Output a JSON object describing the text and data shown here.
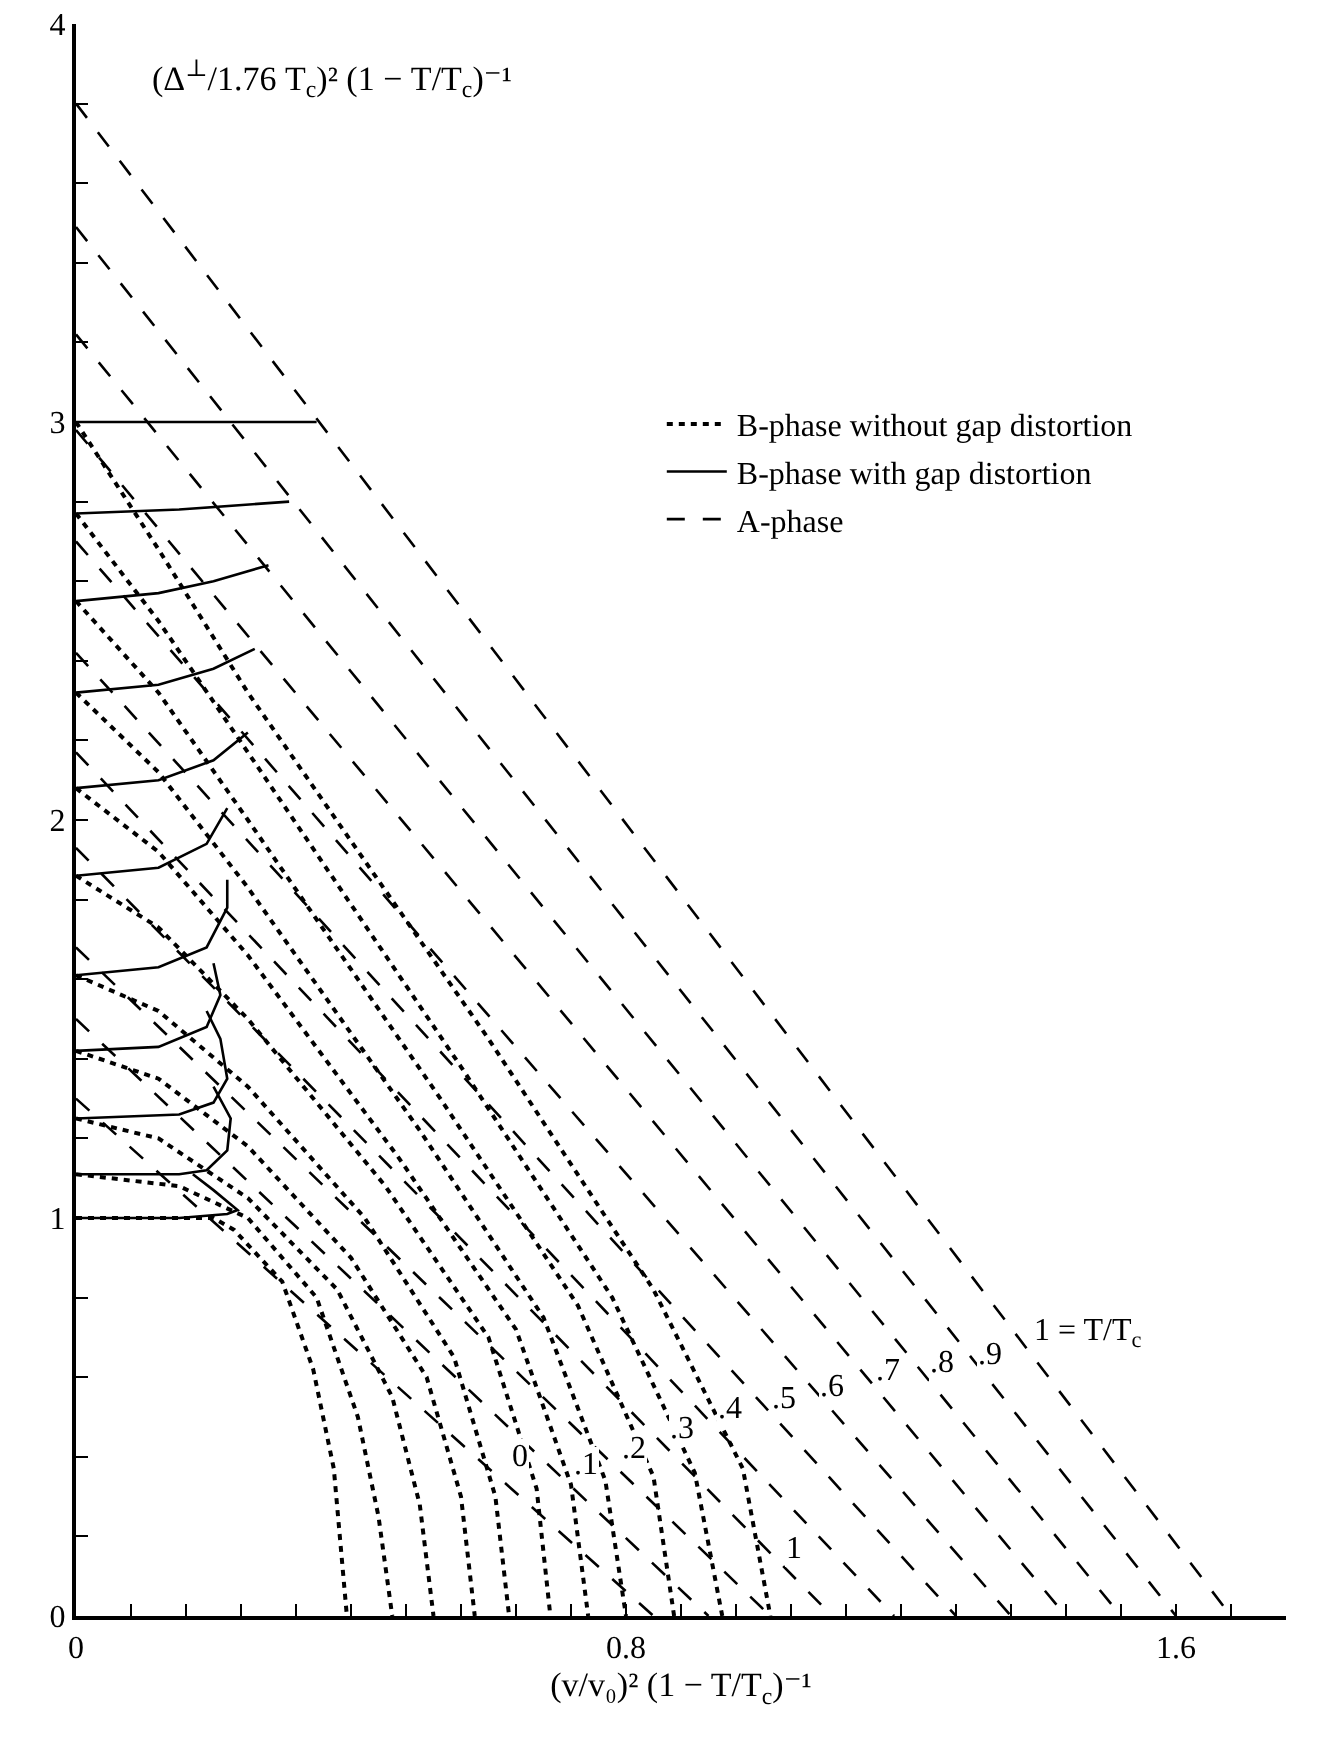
{
  "chart_data": {
    "type": "line",
    "xlabel": "(v/v₀)² (1 − T/T$_{c}$)⁻¹",
    "ylabel": "(Δ$^{⊥}$/1.76 T$_{c}$)² (1 − T/T$_{c}$)⁻¹",
    "xlim": [
      0,
      1.76
    ],
    "ylim": [
      0,
      4
    ],
    "xticks": [
      0,
      {
        "value": 0.08,
        "label": null
      },
      {
        "value": 0.16,
        "label": null
      },
      {
        "value": 0.24,
        "label": null
      },
      {
        "value": 0.32,
        "label": null
      },
      {
        "value": 0.4,
        "label": null
      },
      {
        "value": 0.48,
        "label": null
      },
      {
        "value": 0.56,
        "label": null
      },
      {
        "value": 0.64,
        "label": null
      },
      {
        "value": 0.72,
        "label": null
      },
      0.8,
      {
        "value": 0.88,
        "label": null
      },
      {
        "value": 0.96,
        "label": null
      },
      {
        "value": 1.04,
        "label": null
      },
      {
        "value": 1.12,
        "label": null
      },
      {
        "value": 1.2,
        "label": null
      },
      {
        "value": 1.28,
        "label": null
      },
      {
        "value": 1.36,
        "label": null
      },
      {
        "value": 1.44,
        "label": null
      },
      {
        "value": 1.52,
        "label": null
      },
      1.6,
      {
        "value": 1.68,
        "label": null
      }
    ],
    "yticks": [
      0,
      {
        "value": 0.2,
        "label": null
      },
      {
        "value": 0.4,
        "label": null
      },
      {
        "value": 0.6,
        "label": null
      },
      {
        "value": 0.8,
        "label": null
      },
      1,
      {
        "value": 1.2,
        "label": null
      },
      {
        "value": 1.4,
        "label": null
      },
      {
        "value": 1.6,
        "label": null
      },
      {
        "value": 1.8,
        "label": null
      },
      2,
      {
        "value": 2.2,
        "label": null
      },
      {
        "value": 2.4,
        "label": null
      },
      {
        "value": 2.6,
        "label": null
      },
      {
        "value": 2.8,
        "label": null
      },
      3,
      {
        "value": 3.2,
        "label": null
      },
      {
        "value": 3.4,
        "label": null
      },
      {
        "value": 3.6,
        "label": null
      },
      {
        "value": 3.8,
        "label": null
      },
      4
    ],
    "grid": false,
    "legend": "top right",
    "marker": "none",
    "series": [
      {
        "name": "B-phase without gap distortion",
        "color": "#000000",
        "line_style": "dotted",
        "x": [
          0,
          0.2,
          0.23,
          0.3,
          0.345,
          0.375,
          0.394
        ],
        "values": [
          1,
          1,
          0.97,
          0.84,
          0.62,
          0.37,
          0
        ]
      },
      {
        "color": "#000000",
        "line_style": "dotted",
        "x": [
          0,
          0.15,
          0.25,
          0.35,
          0.41,
          0.44,
          0.46
        ],
        "values": [
          1.11,
          1.08,
          1,
          0.8,
          0.5,
          0.25,
          0
        ]
      },
      {
        "color": "#000000",
        "line_style": "dotted",
        "x": [
          0,
          0.12,
          0.25,
          0.38,
          0.46,
          0.5,
          0.52
        ],
        "values": [
          1.25,
          1.2,
          1.05,
          0.82,
          0.55,
          0.28,
          0
        ]
      },
      {
        "color": "#000000",
        "line_style": "dotted",
        "x": [
          0,
          0.12,
          0.25,
          0.4,
          0.51,
          0.56,
          0.58
        ],
        "values": [
          1.42,
          1.35,
          1.18,
          0.9,
          0.6,
          0.3,
          0
        ]
      },
      {
        "color": "#000000",
        "line_style": "dotted",
        "x": [
          0,
          0.12,
          0.25,
          0.42,
          0.55,
          0.61,
          0.63
        ],
        "values": [
          1.61,
          1.52,
          1.33,
          1,
          0.65,
          0.3,
          0
        ]
      },
      {
        "color": "#000000",
        "line_style": "dotted",
        "x": [
          0,
          0.12,
          0.25,
          0.45,
          0.6,
          0.67,
          0.69
        ],
        "values": [
          1.86,
          1.73,
          1.5,
          1.08,
          0.7,
          0.32,
          0
        ]
      },
      {
        "color": "#000000",
        "line_style": "dotted",
        "x": [
          0,
          0.12,
          0.25,
          0.47,
          0.64,
          0.72,
          0.745
        ],
        "values": [
          2.08,
          1.92,
          1.66,
          1.15,
          0.72,
          0.33,
          0
        ]
      },
      {
        "color": "#000000",
        "line_style": "dotted",
        "x": [
          0,
          0.12,
          0.25,
          0.5,
          0.68,
          0.77,
          0.8
        ],
        "values": [
          2.32,
          2.12,
          1.83,
          1.22,
          0.75,
          0.34,
          0
        ]
      },
      {
        "color": "#000000",
        "line_style": "dotted",
        "x": [
          0,
          0.12,
          0.25,
          0.53,
          0.73,
          0.84,
          0.87
        ],
        "values": [
          2.55,
          2.32,
          2,
          1.3,
          0.78,
          0.35,
          0
        ]
      },
      {
        "color": "#000000",
        "line_style": "dotted",
        "x": [
          0,
          0.12,
          0.25,
          0.56,
          0.78,
          0.9,
          0.94
        ],
        "values": [
          2.77,
          2.5,
          2.17,
          1.38,
          0.8,
          0.36,
          0
        ]
      },
      {
        "color": "#000000",
        "line_style": "dotted",
        "x": [
          0,
          0.12,
          0.25,
          0.6,
          0.84,
          0.97,
          1.01
        ],
        "values": [
          3,
          2.68,
          2.32,
          1.45,
          0.82,
          0.37,
          0
        ]
      },
      {
        "name": "B-phase with gap distortion",
        "color": "#000000",
        "line_style": "solid",
        "x": [
          0,
          0.15,
          0.22,
          0.235,
          0.2,
          0.17
        ],
        "values": [
          1,
          1,
          1.01,
          1.02,
          1.07,
          1.11
        ]
      },
      {
        "color": "#000000",
        "line_style": "solid",
        "x": [
          0,
          0.15,
          0.19,
          0.22,
          0.225,
          0.2
        ],
        "values": [
          1.11,
          1.11,
          1.12,
          1.17,
          1.25,
          1.33
        ]
      },
      {
        "color": "#000000",
        "line_style": "solid",
        "x": [
          0,
          0.15,
          0.2,
          0.22,
          0.21,
          0.19
        ],
        "values": [
          1.25,
          1.26,
          1.29,
          1.35,
          1.45,
          1.52
        ]
      },
      {
        "color": "#000000",
        "line_style": "solid",
        "x": [
          0,
          0.12,
          0.19,
          0.21,
          0.2
        ],
        "values": [
          1.42,
          1.43,
          1.48,
          1.56,
          1.64
        ]
      },
      {
        "color": "#000000",
        "line_style": "solid",
        "x": [
          0,
          0.12,
          0.19,
          0.22,
          0.22
        ],
        "values": [
          1.61,
          1.63,
          1.68,
          1.78,
          1.85
        ]
      },
      {
        "color": "#000000",
        "line_style": "solid",
        "x": [
          0,
          0.12,
          0.19,
          0.22
        ],
        "values": [
          1.86,
          1.88,
          1.94,
          2.03
        ]
      },
      {
        "color": "#000000",
        "line_style": "solid",
        "x": [
          0,
          0.12,
          0.2,
          0.25
        ],
        "values": [
          2.08,
          2.1,
          2.15,
          2.22
        ]
      },
      {
        "color": "#000000",
        "line_style": "solid",
        "x": [
          0,
          0.12,
          0.2,
          0.26
        ],
        "values": [
          2.32,
          2.34,
          2.38,
          2.43
        ]
      },
      {
        "color": "#000000",
        "line_style": "solid",
        "x": [
          0,
          0.12,
          0.2,
          0.28
        ],
        "values": [
          2.55,
          2.57,
          2.6,
          2.64
        ]
      },
      {
        "color": "#000000",
        "line_style": "solid",
        "x": [
          0,
          0.15,
          0.31
        ],
        "values": [
          2.77,
          2.78,
          2.8
        ]
      },
      {
        "color": "#000000",
        "line_style": "solid",
        "x": [
          0,
          0.2,
          0.35
        ],
        "values": [
          3,
          3,
          3
        ]
      },
      {
        "name": "A-phase",
        "color": "#000000",
        "line_style": "dashed",
        "x": [
          0,
          0.84
        ],
        "values": [
          1.3,
          0
        ]
      },
      {
        "color": "#000000",
        "line_style": "dashed",
        "x": [
          0,
          0.92
        ],
        "values": [
          1.5,
          0
        ]
      },
      {
        "color": "#000000",
        "line_style": "dashed",
        "x": [
          0,
          1.01
        ],
        "values": [
          1.68,
          0
        ]
      },
      {
        "color": "#000000",
        "line_style": "dashed",
        "x": [
          0,
          1.1
        ],
        "values": [
          1.93,
          0
        ]
      },
      {
        "color": "#000000",
        "line_style": "dashed",
        "x": [
          0,
          1.19
        ],
        "values": [
          2.17,
          0
        ]
      },
      {
        "color": "#000000",
        "line_style": "dashed",
        "x": [
          0,
          1.28
        ],
        "values": [
          2.42,
          0
        ]
      },
      {
        "color": "#000000",
        "line_style": "dashed",
        "x": [
          0,
          1.36
        ],
        "values": [
          2.7,
          0
        ]
      },
      {
        "color": "#000000",
        "line_style": "dashed",
        "x": [
          0,
          1.44
        ],
        "values": [
          2.98,
          0
        ]
      },
      {
        "color": "#000000",
        "line_style": "dashed",
        "x": [
          0,
          1.52
        ],
        "values": [
          3.22,
          0
        ]
      },
      {
        "color": "#000000",
        "line_style": "dashed",
        "x": [
          0,
          1.6
        ],
        "values": [
          3.49,
          0
        ]
      },
      {
        "color": "#000000",
        "line_style": "dashed",
        "x": [
          0,
          1.68
        ],
        "values": [
          3.8,
          0
        ]
      }
    ],
    "annotations": [
      {
        "text": "0",
        "x": 0.63,
        "y": 0.35
      },
      {
        "text": ".1",
        "x": 0.72,
        "y": 0.33
      },
      {
        "text": ".2",
        "x": 0.79,
        "y": 0.37
      },
      {
        "text": ".3",
        "x": 0.86,
        "y": 0.42
      },
      {
        "text": ".4",
        "x": 0.93,
        "y": 0.47
      },
      {
        "text": ".5",
        "x": 1.01,
        "y": 0.5
      },
      {
        "text": ".6",
        "x": 1.08,
        "y": 0.53
      },
      {
        "text": ".7",
        "x": 1.16,
        "y": 0.57
      },
      {
        "text": ".8",
        "x": 1.24,
        "y": 0.59
      },
      {
        "text": ".9",
        "x": 1.31,
        "y": 0.61
      },
      {
        "text": "1 = T/T$_{c}$",
        "x": 1.39,
        "y": 0.66
      },
      {
        "text": "1",
        "x": 1.03,
        "y": 0.12
      }
    ]
  }
}
